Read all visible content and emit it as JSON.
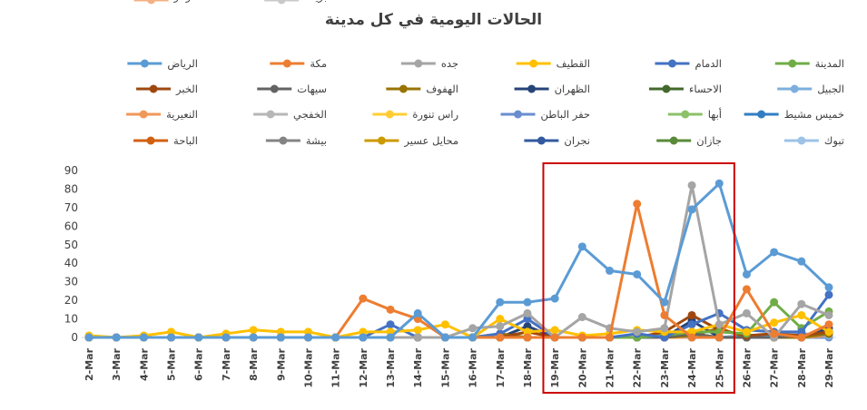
{
  "chart_data": {
    "type": "line",
    "title": "الحالات اليومية في كل مدينة",
    "xlabel": "",
    "ylabel": "",
    "ylim": [
      0,
      90
    ],
    "yticks": [
      0,
      10,
      20,
      30,
      40,
      50,
      60,
      70,
      80,
      90
    ],
    "grid": false,
    "legend_position": "top",
    "highlight": {
      "from": "19-Mar",
      "to": "25-Mar",
      "color": "#cc0000"
    },
    "categories": [
      "2-Mar",
      "3-Mar",
      "4-Mar",
      "5-Mar",
      "6-Mar",
      "7-Mar",
      "8-Mar",
      "9-Mar",
      "10-Mar",
      "11-Mar",
      "12-Mar",
      "13-Mar",
      "14-Mar",
      "15-Mar",
      "16-Mar",
      "17-Mar",
      "18-Mar",
      "19-Mar",
      "20-Mar",
      "21-Mar",
      "22-Mar",
      "23-Mar",
      "24-Mar",
      "25-Mar",
      "26-Mar",
      "27-Mar",
      "28-Mar",
      "29-Mar"
    ],
    "series": [
      {
        "name": "الرياض",
        "color": "#5b9bd5",
        "values": [
          0,
          0,
          0,
          0,
          0,
          0,
          0,
          0,
          0,
          0,
          0,
          0,
          13,
          0,
          0,
          19,
          19,
          21,
          49,
          36,
          34,
          19,
          69,
          83,
          34,
          46,
          41,
          27
        ]
      },
      {
        "name": "مكة",
        "color": "#ed7d31",
        "values": [
          0,
          0,
          0,
          0,
          0,
          0,
          0,
          0,
          0,
          0,
          21,
          15,
          10,
          0,
          0,
          0,
          0,
          0,
          0,
          0,
          72,
          12,
          0,
          0,
          26,
          2,
          0,
          7
        ]
      },
      {
        "name": "جده",
        "color": "#a5a5a5",
        "values": [
          0,
          0,
          0,
          0,
          0,
          0,
          0,
          0,
          0,
          0,
          0,
          0,
          0,
          0,
          5,
          6,
          13,
          0,
          11,
          5,
          3,
          5,
          82,
          7,
          13,
          0,
          18,
          12
        ]
      },
      {
        "name": "القطيف",
        "color": "#ffc000",
        "values": [
          1,
          0,
          1,
          3,
          0,
          2,
          4,
          3,
          3,
          0,
          3,
          3,
          4,
          7,
          0,
          10,
          3,
          4,
          1,
          2,
          4,
          3,
          3,
          7,
          3,
          8,
          12,
          3
        ]
      },
      {
        "name": "الدمام",
        "color": "#4472c4",
        "values": [
          0,
          0,
          0,
          0,
          0,
          0,
          0,
          0,
          0,
          0,
          0,
          7,
          0,
          0,
          0,
          2,
          10,
          0,
          0,
          0,
          2,
          0,
          7,
          13,
          4,
          3,
          3,
          23
        ]
      },
      {
        "name": "المدينة",
        "color": "#70ad47",
        "values": [
          0,
          0,
          0,
          0,
          0,
          0,
          0,
          0,
          0,
          0,
          0,
          0,
          0,
          0,
          0,
          0,
          0,
          0,
          0,
          0,
          0,
          1,
          3,
          3,
          2,
          19,
          5,
          14
        ]
      },
      {
        "name": "الخبر",
        "color": "#9e480e",
        "values": [
          0,
          0,
          0,
          0,
          0,
          0,
          0,
          0,
          0,
          0,
          0,
          0,
          0,
          0,
          0,
          0,
          3,
          0,
          0,
          0,
          0,
          3,
          12,
          4,
          1,
          2,
          1,
          3
        ]
      },
      {
        "name": "سيهات",
        "color": "#636363",
        "values": [
          0,
          0,
          0,
          0,
          0,
          0,
          0,
          0,
          0,
          0,
          0,
          0,
          0,
          0,
          0,
          0,
          0,
          0,
          0,
          0,
          0,
          0,
          2,
          0,
          0,
          0,
          1,
          3
        ]
      },
      {
        "name": "الهفوف",
        "color": "#997300",
        "values": [
          0,
          0,
          0,
          0,
          0,
          0,
          0,
          0,
          0,
          0,
          0,
          0,
          0,
          0,
          0,
          2,
          0,
          0,
          0,
          0,
          0,
          0,
          1,
          5,
          0,
          0,
          0,
          2
        ]
      },
      {
        "name": "الظهران",
        "color": "#264478",
        "values": [
          0,
          0,
          0,
          0,
          0,
          0,
          0,
          0,
          0,
          0,
          0,
          0,
          0,
          0,
          0,
          0,
          6,
          0,
          0,
          0,
          0,
          0,
          9,
          0,
          0,
          0,
          0,
          5
        ]
      },
      {
        "name": "الاحساء",
        "color": "#43682b",
        "values": [
          0,
          0,
          0,
          0,
          0,
          0,
          0,
          0,
          0,
          0,
          0,
          0,
          0,
          0,
          0,
          0,
          0,
          0,
          0,
          0,
          0,
          0,
          2,
          0,
          0,
          0,
          0,
          2
        ]
      },
      {
        "name": "الجبيل",
        "color": "#7cafdd",
        "values": [
          0,
          0,
          0,
          0,
          0,
          0,
          0,
          0,
          0,
          0,
          0,
          0,
          0,
          0,
          0,
          0,
          0,
          0,
          0,
          0,
          0,
          2,
          0,
          0,
          1,
          0,
          2,
          1
        ]
      },
      {
        "name": "النعيرية",
        "color": "#f1975a",
        "values": [
          0,
          0,
          0,
          0,
          0,
          0,
          0,
          0,
          0,
          0,
          0,
          0,
          0,
          0,
          0,
          0,
          0,
          0,
          0,
          0,
          0,
          0,
          0,
          0,
          0,
          0,
          0,
          1
        ]
      },
      {
        "name": "الخفجي",
        "color": "#b7b7b7",
        "values": [
          0,
          0,
          0,
          0,
          0,
          0,
          0,
          0,
          0,
          0,
          0,
          0,
          0,
          0,
          0,
          0,
          0,
          0,
          0,
          0,
          0,
          0,
          0,
          0,
          0,
          0,
          0,
          1
        ]
      },
      {
        "name": "راس تنورة",
        "color": "#ffcd33",
        "values": [
          0,
          0,
          0,
          0,
          0,
          0,
          0,
          0,
          0,
          0,
          0,
          0,
          0,
          0,
          0,
          0,
          0,
          0,
          0,
          0,
          0,
          0,
          0,
          0,
          0,
          0,
          0,
          1
        ]
      },
      {
        "name": "حفر الباطن",
        "color": "#698ed0",
        "values": [
          0,
          0,
          0,
          0,
          0,
          0,
          0,
          0,
          0,
          0,
          0,
          0,
          0,
          0,
          0,
          0,
          0,
          0,
          0,
          0,
          0,
          0,
          0,
          0,
          0,
          2,
          0,
          0
        ]
      },
      {
        "name": "أبها",
        "color": "#8cc168",
        "values": [
          0,
          0,
          0,
          0,
          0,
          0,
          0,
          0,
          0,
          0,
          0,
          0,
          0,
          0,
          0,
          0,
          0,
          0,
          0,
          0,
          0,
          0,
          0,
          0,
          0,
          0,
          1,
          2
        ]
      },
      {
        "name": "خميس مشيط",
        "color": "#327dc2",
        "values": [
          0,
          0,
          0,
          0,
          0,
          0,
          0,
          0,
          0,
          0,
          0,
          0,
          0,
          0,
          0,
          0,
          0,
          0,
          0,
          0,
          0,
          0,
          0,
          0,
          1,
          0,
          0,
          2
        ]
      },
      {
        "name": "الباحة",
        "color": "#d26012",
        "values": [
          0,
          0,
          0,
          0,
          0,
          0,
          0,
          0,
          0,
          0,
          0,
          0,
          0,
          0,
          0,
          0,
          0,
          0,
          0,
          0,
          0,
          0,
          0,
          0,
          0,
          0,
          0,
          1
        ]
      },
      {
        "name": "بيشة",
        "color": "#848484",
        "values": [
          0,
          0,
          0,
          0,
          0,
          0,
          0,
          0,
          0,
          0,
          0,
          0,
          0,
          0,
          0,
          0,
          0,
          0,
          0,
          0,
          0,
          0,
          0,
          0,
          0,
          0,
          0,
          1
        ]
      },
      {
        "name": "محايل عسير",
        "color": "#cc9a00",
        "values": [
          0,
          0,
          0,
          0,
          0,
          0,
          0,
          0,
          0,
          0,
          0,
          0,
          0,
          0,
          0,
          0,
          0,
          0,
          0,
          0,
          0,
          0,
          0,
          0,
          0,
          0,
          0,
          1
        ]
      },
      {
        "name": "نجران",
        "color": "#335aa1",
        "values": [
          0,
          0,
          0,
          0,
          0,
          0,
          0,
          0,
          0,
          0,
          0,
          0,
          0,
          0,
          0,
          0,
          0,
          0,
          0,
          0,
          0,
          0,
          0,
          0,
          0,
          0,
          0,
          2
        ]
      },
      {
        "name": "جازان",
        "color": "#5a8a39",
        "values": [
          0,
          0,
          0,
          0,
          0,
          0,
          0,
          0,
          0,
          0,
          0,
          0,
          0,
          0,
          0,
          0,
          0,
          0,
          0,
          0,
          0,
          0,
          0,
          0,
          0,
          0,
          0,
          1
        ]
      },
      {
        "name": "تبوك",
        "color": "#9dc3e6",
        "values": [
          0,
          0,
          0,
          0,
          0,
          0,
          0,
          0,
          0,
          0,
          0,
          0,
          0,
          0,
          0,
          0,
          0,
          0,
          0,
          0,
          0,
          0,
          0,
          0,
          0,
          0,
          1,
          2
        ]
      },
      {
        "name": "عرعر",
        "color": "#f4b183",
        "values": [
          0,
          0,
          0,
          0,
          0,
          0,
          0,
          0,
          0,
          0,
          0,
          0,
          0,
          0,
          0,
          0,
          0,
          0,
          0,
          0,
          0,
          0,
          0,
          0,
          0,
          0,
          0,
          1
        ]
      },
      {
        "name": "بريدة",
        "color": "#c9c9c9",
        "values": [
          0,
          0,
          0,
          0,
          0,
          0,
          0,
          0,
          0,
          0,
          0,
          0,
          0,
          0,
          0,
          0,
          0,
          0,
          0,
          0,
          0,
          0,
          0,
          0,
          0,
          0,
          2,
          1
        ]
      }
    ]
  }
}
